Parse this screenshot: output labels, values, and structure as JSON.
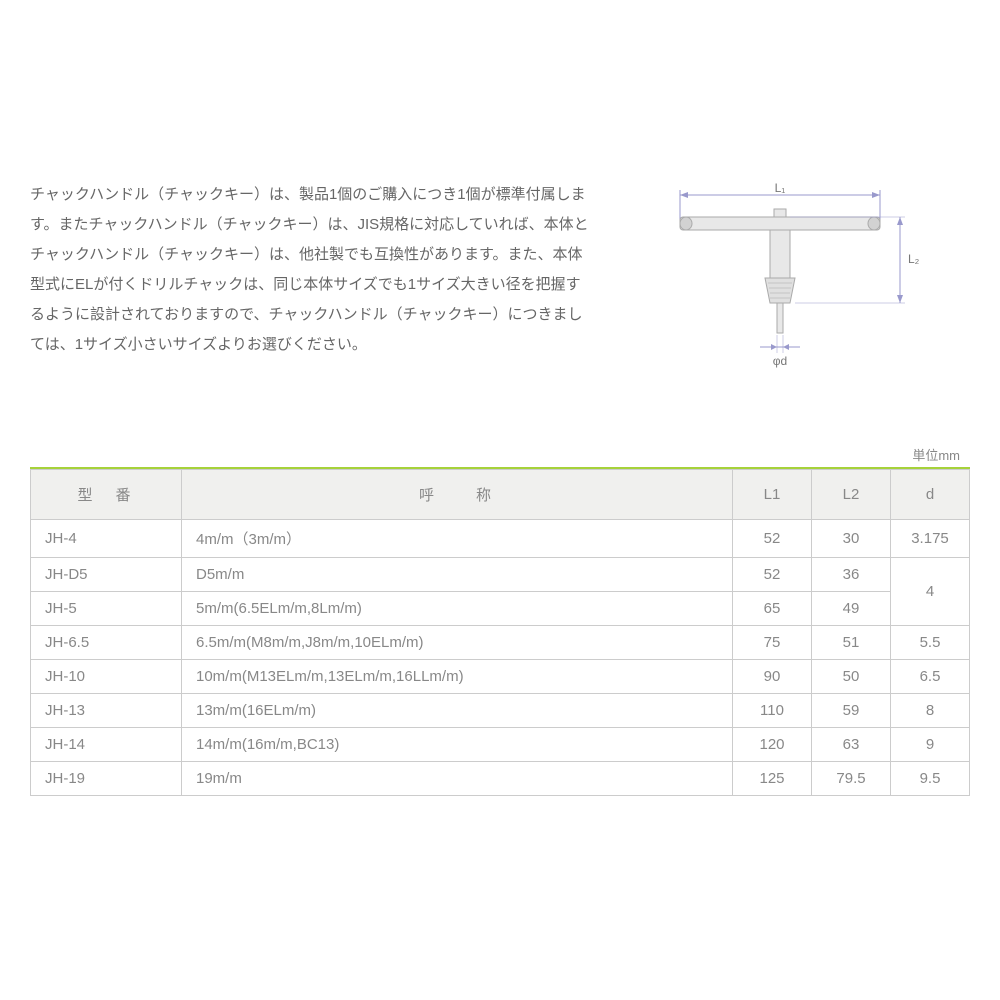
{
  "description": "チャックハンドル（チャックキー）は、製品1個のご購入につき1個が標準付属します。またチャックハンドル（チャックキー）は、JIS規格に対応していれば、本体とチャックハンドル（チャックキー）は、他社製でも互換性があります。また、本体型式にELが付くドリルチャックは、同じ本体サイズでも1サイズ大きい径を把握するように設計されておりますので、チャックハンドル（チャックキー）につきましては、1サイズ小さいサイズよりお選びください。",
  "diagram": {
    "labels": {
      "L1": "L₁",
      "L2": "L₂",
      "d": "φd"
    },
    "colors": {
      "dimension_line": "#9999cc",
      "part_fill": "#e8e8e8",
      "part_stroke": "#aaaaaa"
    }
  },
  "table": {
    "unit_label": "単位mm",
    "accent_color": "#a6d23a",
    "header_bg": "#f0f0ee",
    "border_color": "#cccccc",
    "columns": {
      "model": "型　番",
      "name": "呼　　称",
      "L1": "L1",
      "L2": "L2",
      "d": "d"
    },
    "rows": [
      {
        "model": "JH-4",
        "name": "4m/m（3m/m）",
        "L1": "52",
        "L2": "30",
        "d": "3.175"
      },
      {
        "model": "JH-D5",
        "name": "D5m/m",
        "L1": "52",
        "L2": "36",
        "d": "4",
        "d_rowspan": 2
      },
      {
        "model": "JH-5",
        "name": "5m/m(6.5ELm/m,8Lm/m)",
        "L1": "65",
        "L2": "49"
      },
      {
        "model": "JH-6.5",
        "name": "6.5m/m(M8m/m,J8m/m,10ELm/m)",
        "L1": "75",
        "L2": "51",
        "d": "5.5"
      },
      {
        "model": "JH-10",
        "name": "10m/m(M13ELm/m,13ELm/m,16LLm/m)",
        "L1": "90",
        "L2": "50",
        "d": "6.5"
      },
      {
        "model": "JH-13",
        "name": "13m/m(16ELm/m)",
        "L1": "110",
        "L2": "59",
        "d": "8"
      },
      {
        "model": "JH-14",
        "name": "14m/m(16m/m,BC13)",
        "L1": "120",
        "L2": "63",
        "d": "9"
      },
      {
        "model": "JH-19",
        "name": "19m/m",
        "L1": "125",
        "L2": "79.5",
        "d": "9.5"
      }
    ]
  }
}
